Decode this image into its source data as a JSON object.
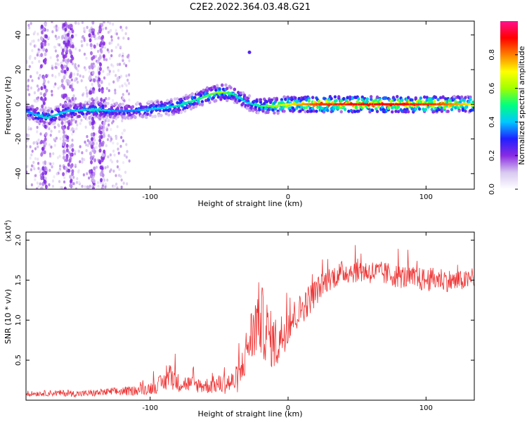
{
  "figure": {
    "title": "C2E2.2022.364.03.48.G21"
  },
  "colors": {
    "snr_line": "#ee3333",
    "frame": "#000000",
    "background": "#ffffff"
  },
  "chart_data": [
    {
      "type": "heatmap",
      "title": "",
      "xlabel": "Height of straight line (km)",
      "ylabel": "Frequency (Hz)",
      "xlim": [
        -190,
        135
      ],
      "ylim": [
        -49,
        48
      ],
      "xticks": [
        -100,
        0,
        100
      ],
      "yticks": [
        -40,
        -20,
        0,
        20,
        40
      ],
      "colorbar": {
        "label": "Normalized spectral amplitude",
        "range": [
          0.0,
          1.0
        ],
        "ticks": [
          "0.0",
          "0.2",
          "0.4",
          "0.6",
          "0.8"
        ],
        "tick_values": [
          0.0,
          0.2,
          0.4,
          0.6,
          0.8
        ],
        "colormap": [
          "#ffffff",
          "#d8c8f0",
          "#8a2be2",
          "#2020ff",
          "#00c8ff",
          "#00ff80",
          "#a0ff00",
          "#ffff00",
          "#ff8000",
          "#ff0000",
          "#ff1090"
        ]
      },
      "ridge": {
        "x": [
          -190,
          -175,
          -160,
          -140,
          -120,
          -100,
          -80,
          -65,
          -55,
          -48,
          -40,
          -35,
          -30,
          -25,
          -20,
          -10,
          0,
          20,
          50,
          80,
          110,
          135
        ],
        "y": [
          -4,
          -8,
          -4,
          -3,
          -4,
          -3,
          -1,
          3,
          6,
          7,
          6,
          4,
          1,
          0,
          -1,
          -1,
          0,
          0,
          0,
          0,
          0,
          0
        ],
        "peak_amplitude": [
          0.35,
          0.45,
          0.4,
          0.45,
          0.35,
          0.4,
          0.45,
          0.5,
          0.55,
          0.6,
          0.5,
          0.45,
          0.4,
          0.45,
          0.5,
          0.6,
          0.7,
          0.85,
          0.9,
          0.9,
          0.85,
          0.7
        ]
      },
      "isolated_feature": {
        "x": -28,
        "y": 30
      }
    },
    {
      "type": "line",
      "title": "",
      "xlabel": "Height of straight line (km)",
      "ylabel": "SNR (10 * v/v)",
      "y_multiplier": "(x10",
      "y_multiplier_exp": "4",
      "y_multiplier_close": ")",
      "xlim": [
        -190,
        135
      ],
      "ylim": [
        0,
        2.1
      ],
      "xticks": [
        -100,
        0,
        100
      ],
      "yticks": [
        0.5,
        1.0,
        1.5,
        2.0
      ],
      "ytick_labels": [
        "0.5",
        "1.0",
        "1.5",
        "2.0"
      ],
      "series": [
        {
          "x": [
            -190,
            -170,
            -150,
            -130,
            -110,
            -100,
            -90,
            -85,
            -80,
            -70,
            -60,
            -50,
            -40,
            -35,
            -32,
            -28,
            -25,
            -22,
            -18,
            -15,
            -12,
            -8,
            -5,
            0,
            5,
            10,
            15,
            20,
            25,
            30,
            40,
            50,
            60,
            70,
            80,
            90,
            100,
            110,
            120,
            130,
            135
          ],
          "y": [
            0.08,
            0.09,
            0.08,
            0.1,
            0.12,
            0.15,
            0.22,
            0.32,
            0.22,
            0.2,
            0.18,
            0.2,
            0.22,
            0.3,
            0.5,
            0.75,
            0.85,
            1.05,
            0.95,
            0.85,
            0.75,
            0.7,
            0.8,
            0.95,
            1.05,
            1.15,
            1.25,
            1.35,
            1.45,
            1.52,
            1.6,
            1.62,
            1.6,
            1.58,
            1.55,
            1.52,
            1.5,
            1.52,
            1.48,
            1.5,
            1.52
          ],
          "noise": [
            0.03,
            0.04,
            0.04,
            0.05,
            0.06,
            0.08,
            0.12,
            0.18,
            0.12,
            0.1,
            0.1,
            0.12,
            0.15,
            0.2,
            0.25,
            0.35,
            0.4,
            0.45,
            0.45,
            0.4,
            0.35,
            0.35,
            0.3,
            0.25,
            0.22,
            0.2,
            0.2,
            0.18,
            0.15,
            0.15,
            0.15,
            0.15,
            0.15,
            0.15,
            0.15,
            0.15,
            0.15,
            0.15,
            0.14,
            0.12,
            0.12
          ]
        }
      ]
    }
  ]
}
